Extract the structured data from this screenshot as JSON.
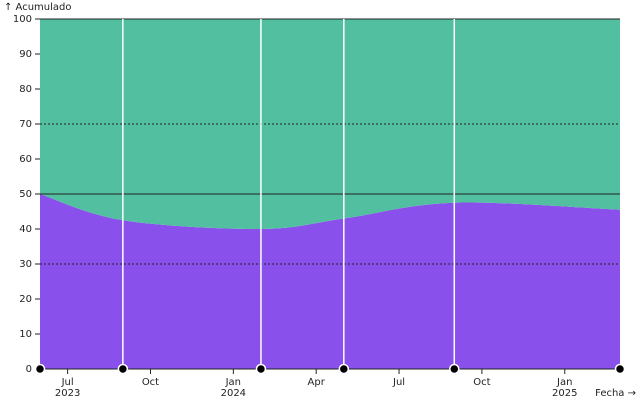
{
  "chart_data": {
    "type": "area",
    "stacked": true,
    "y_label": "↑ Acumulado",
    "x_label": "Fecha →",
    "x": [
      "2023-06",
      "2023-09",
      "2024-02",
      "2024-05",
      "2024-09",
      "2025-03"
    ],
    "series": [
      {
        "color": "#8950eb",
        "values": [
          50,
          42.5,
          40,
          43,
          47.5,
          45.5
        ]
      },
      {
        "color": "#52c0a0",
        "values": [
          50,
          57.5,
          60,
          57,
          52.5,
          54.5
        ]
      }
    ],
    "xlim": [
      "2023-06",
      "2025-03"
    ],
    "xticks": [
      {
        "value": "2023-07",
        "label": "Jul 2023"
      },
      {
        "value": "2023-10",
        "label": "Oct"
      },
      {
        "value": "2024-01",
        "label": "Jan 2024"
      },
      {
        "value": "2024-04",
        "label": "Apr"
      },
      {
        "value": "2024-07",
        "label": "Jul"
      },
      {
        "value": "2024-10",
        "label": "Oct"
      },
      {
        "value": "2025-01",
        "label": "Jan 2025"
      }
    ],
    "ylim": [
      0,
      100
    ],
    "yticks": [
      0,
      10,
      20,
      30,
      40,
      50,
      60,
      70,
      80,
      90,
      100
    ],
    "hlines": [
      {
        "value": 30,
        "dashed": true
      },
      {
        "value": 50,
        "dashed": false
      },
      {
        "value": 70,
        "dashed": true
      },
      {
        "value": 100,
        "dashed": false
      }
    ],
    "point_rules": true,
    "point_markers": true
  }
}
